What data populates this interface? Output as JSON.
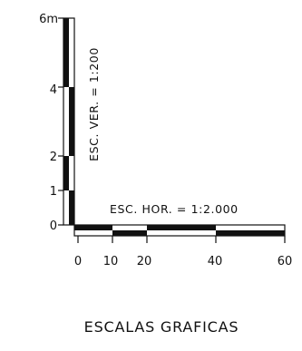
{
  "vertical_scale": {
    "caption": "ESC. VER. = 1:200",
    "ticks": [
      {
        "label": "0",
        "value": 0
      },
      {
        "label": "1",
        "value": 1
      },
      {
        "label": "2",
        "value": 2
      },
      {
        "label": "4",
        "value": 4
      },
      {
        "label": "6m",
        "value": 6
      }
    ],
    "block_bounds": [
      0,
      1,
      2,
      4,
      6
    ]
  },
  "horizontal_scale": {
    "caption": "ESC. HOR. = 1:2.000",
    "ticks": [
      {
        "label": "0",
        "value": 0
      },
      {
        "label": "10",
        "value": 10
      },
      {
        "label": "20",
        "value": 20
      },
      {
        "label": "40",
        "value": 40
      },
      {
        "label": "60",
        "value": 60
      }
    ],
    "block_bounds": [
      0,
      10,
      20,
      40,
      60
    ]
  },
  "title": "ESCALAS GRAFICAS",
  "colors": {
    "ink": "#111111",
    "paper": "#ffffff"
  }
}
